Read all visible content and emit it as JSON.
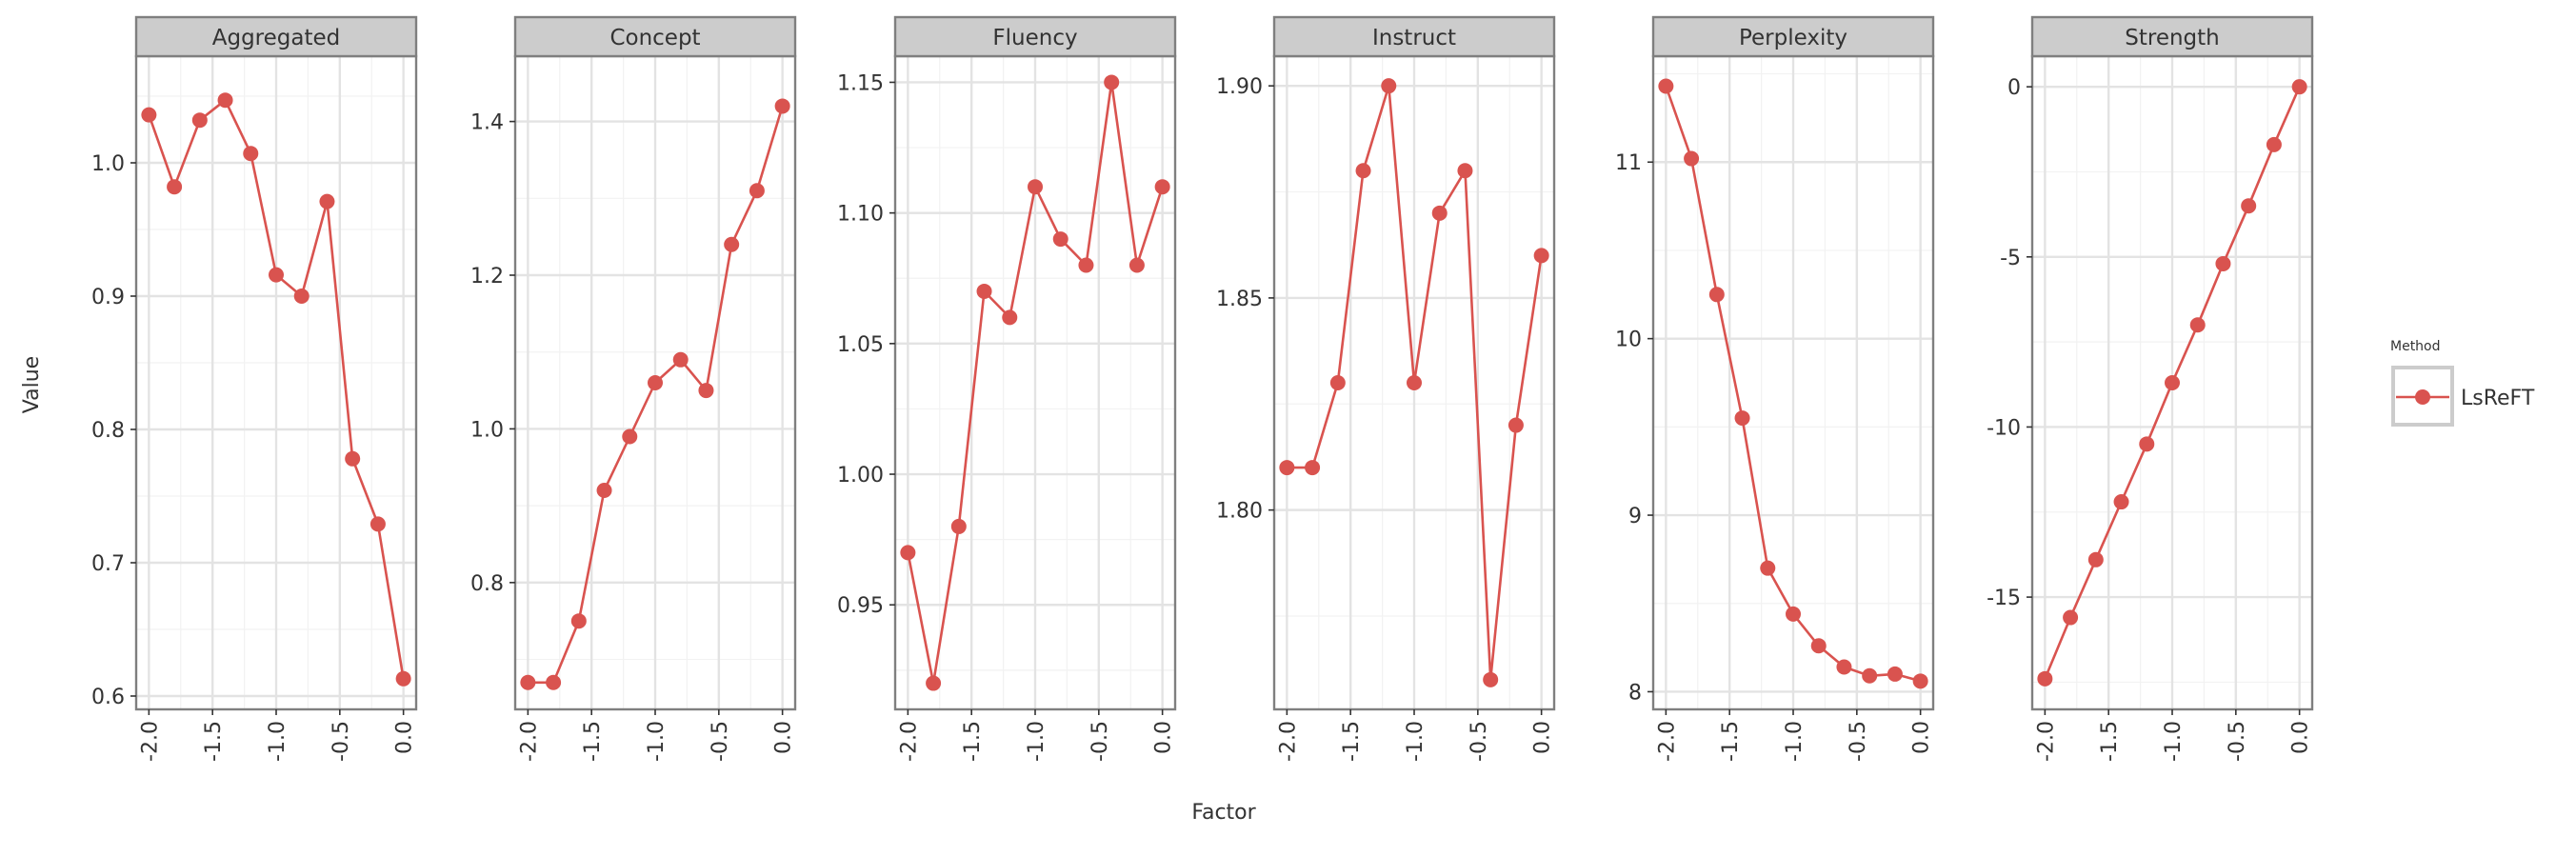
{
  "figure": {
    "xlabel": "Factor",
    "ylabel": "Value",
    "legend_title": "Method",
    "legend_position": "right",
    "x_ticks": [
      -2.0,
      -1.5,
      -1.0,
      -0.5,
      0.0
    ],
    "x_tick_labels": [
      "-2.0",
      "-1.5",
      "-1.0",
      "-0.5",
      "0.0"
    ]
  },
  "colors": {
    "series": "#d9534f",
    "strip_bg": "#cccccc",
    "panel_border": "#7f7f7f",
    "grid_major": "#e3e3e3",
    "grid_minor": "#f2f2f2"
  },
  "chart_data": [
    {
      "type": "line",
      "facet": "Aggregated",
      "x": [
        -2.0,
        -1.8,
        -1.6,
        -1.4,
        -1.2,
        -1.0,
        -0.8,
        -0.6,
        -0.4,
        -0.2,
        0.0
      ],
      "series": [
        {
          "name": "LsReFT",
          "values": [
            1.036,
            0.982,
            1.032,
            1.047,
            1.007,
            0.916,
            0.9,
            0.971,
            0.778,
            0.729,
            0.613
          ]
        }
      ],
      "ylim": [
        0.59,
        1.08
      ],
      "y_ticks": [
        0.6,
        0.7,
        0.8,
        0.9,
        1.0
      ],
      "y_tick_labels": [
        "0.6",
        "0.7",
        "0.8",
        "0.9",
        "1.0"
      ]
    },
    {
      "type": "line",
      "facet": "Concept",
      "x": [
        -2.0,
        -1.8,
        -1.6,
        -1.4,
        -1.2,
        -1.0,
        -0.8,
        -0.6,
        -0.4,
        -0.2,
        0.0
      ],
      "series": [
        {
          "name": "LsReFT",
          "values": [
            0.67,
            0.67,
            0.75,
            0.92,
            0.99,
            1.06,
            1.09,
            1.05,
            1.24,
            1.31,
            1.42
          ]
        }
      ],
      "ylim": [
        0.635,
        1.485
      ],
      "y_ticks": [
        0.8,
        1.0,
        1.2,
        1.4
      ],
      "y_tick_labels": [
        "0.8",
        "1.0",
        "1.2",
        "1.4"
      ]
    },
    {
      "type": "line",
      "facet": "Fluency",
      "x": [
        -2.0,
        -1.8,
        -1.6,
        -1.4,
        -1.2,
        -1.0,
        -0.8,
        -0.6,
        -0.4,
        -0.2,
        0.0
      ],
      "series": [
        {
          "name": "LsReFT",
          "values": [
            0.97,
            0.92,
            0.98,
            1.07,
            1.06,
            1.11,
            1.09,
            1.08,
            1.15,
            1.08,
            1.11
          ]
        }
      ],
      "ylim": [
        0.91,
        1.16
      ],
      "y_ticks": [
        0.95,
        1.0,
        1.05,
        1.1,
        1.15
      ],
      "y_tick_labels": [
        "0.95",
        "1.00",
        "1.05",
        "1.10",
        "1.15"
      ]
    },
    {
      "type": "line",
      "facet": "Instruct",
      "x": [
        -2.0,
        -1.8,
        -1.6,
        -1.4,
        -1.2,
        -1.0,
        -0.8,
        -0.6,
        -0.4,
        -0.2,
        0.0
      ],
      "series": [
        {
          "name": "LsReFT",
          "values": [
            1.81,
            1.81,
            1.83,
            1.88,
            1.9,
            1.83,
            1.87,
            1.88,
            1.76,
            1.82,
            1.86
          ]
        }
      ],
      "ylim": [
        1.753,
        1.907
      ],
      "y_ticks": [
        1.8,
        1.85,
        1.9
      ],
      "y_tick_labels": [
        "1.80",
        "1.85",
        "1.90"
      ]
    },
    {
      "type": "line",
      "facet": "Perplexity",
      "x": [
        -2.0,
        -1.8,
        -1.6,
        -1.4,
        -1.2,
        -1.0,
        -0.8,
        -0.6,
        -0.4,
        -0.2,
        0.0
      ],
      "series": [
        {
          "name": "LsReFT",
          "values": [
            11.43,
            11.02,
            10.25,
            9.55,
            8.7,
            8.44,
            8.26,
            8.14,
            8.09,
            8.1,
            8.06
          ]
        }
      ],
      "ylim": [
        7.9,
        11.6
      ],
      "y_ticks": [
        8,
        9,
        10,
        11
      ],
      "y_tick_labels": [
        "8",
        "9",
        "10",
        "11"
      ]
    },
    {
      "type": "line",
      "facet": "Strength",
      "x": [
        -2.0,
        -1.8,
        -1.6,
        -1.4,
        -1.2,
        -1.0,
        -0.8,
        -0.6,
        -0.4,
        -0.2,
        0.0
      ],
      "series": [
        {
          "name": "LsReFT",
          "values": [
            -17.4,
            -15.6,
            -13.9,
            -12.2,
            -10.5,
            -8.7,
            -7.0,
            -5.2,
            -3.5,
            -1.7,
            0.0
          ]
        }
      ],
      "ylim": [
        -18.3,
        0.9
      ],
      "y_ticks": [
        -15,
        -10,
        -5,
        0
      ],
      "y_tick_labels": [
        "-15",
        "-10",
        "-5",
        "0"
      ]
    }
  ]
}
